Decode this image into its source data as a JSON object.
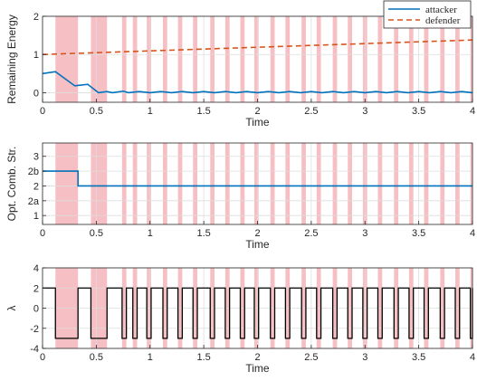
{
  "chart_data": [
    {
      "type": "line",
      "ylabel": "Remaining Energy",
      "xlabel": "Time",
      "xlim": [
        0,
        4
      ],
      "ylim": [
        -0.25,
        2
      ],
      "xticks": [
        0,
        0.5,
        1,
        1.5,
        2,
        2.5,
        3,
        3.5,
        4
      ],
      "xticklabels": [
        "0",
        "0.5",
        "1",
        "1.5",
        "2",
        "2.5",
        "3",
        "3.5",
        "4"
      ],
      "yticks": [
        0,
        1,
        2
      ],
      "yticklabels": [
        "0",
        "1",
        "2"
      ],
      "grid": true,
      "legend_position": "top-right",
      "series": [
        {
          "name": "attacker",
          "color": "#0072bd",
          "dash": "solid",
          "points": [
            [
              0,
              0.5
            ],
            [
              0.12,
              0.55
            ],
            [
              0.3,
              0.18
            ],
            [
              0.42,
              0.22
            ],
            [
              0.52,
              0.0
            ],
            [
              0.6,
              0.03
            ],
            [
              0.65,
              0.0
            ],
            [
              0.75,
              0.04
            ],
            [
              0.8,
              0.0
            ],
            [
              0.9,
              0.03
            ],
            [
              1.0,
              0.0
            ],
            [
              1.1,
              0.03
            ],
            [
              1.2,
              0.0
            ],
            [
              1.3,
              0.03
            ],
            [
              1.4,
              0.0
            ],
            [
              1.5,
              0.03
            ],
            [
              1.6,
              0.0
            ],
            [
              1.7,
              0.03
            ],
            [
              1.8,
              0.0
            ],
            [
              1.9,
              0.03
            ],
            [
              2.0,
              0.0
            ],
            [
              2.1,
              0.03
            ],
            [
              2.2,
              0.0
            ],
            [
              2.3,
              0.03
            ],
            [
              2.4,
              0.0
            ],
            [
              2.5,
              0.03
            ],
            [
              2.6,
              0.0
            ],
            [
              2.7,
              0.03
            ],
            [
              2.8,
              0.0
            ],
            [
              2.9,
              0.03
            ],
            [
              3.0,
              0.0
            ],
            [
              3.1,
              0.03
            ],
            [
              3.2,
              0.0
            ],
            [
              3.3,
              0.03
            ],
            [
              3.4,
              0.0
            ],
            [
              3.5,
              0.03
            ],
            [
              3.6,
              0.0
            ],
            [
              3.7,
              0.03
            ],
            [
              3.8,
              0.0
            ],
            [
              3.9,
              0.03
            ],
            [
              4.0,
              0.0
            ]
          ]
        },
        {
          "name": "defender",
          "color": "#d95319",
          "dash": "dashed",
          "points": [
            [
              0,
              1.0
            ],
            [
              4,
              1.38
            ]
          ]
        }
      ]
    },
    {
      "type": "line",
      "ylabel": "Opt. Comb. Str.",
      "xlabel": "Time",
      "xlim": [
        0,
        4
      ],
      "ylim": [
        0.7,
        3.45
      ],
      "xticks": [
        0,
        0.5,
        1,
        1.5,
        2,
        2.5,
        3,
        3.5,
        4
      ],
      "xticklabels": [
        "0",
        "0.5",
        "1",
        "1.5",
        "2",
        "2.5",
        "3",
        "3.5",
        "4"
      ],
      "yticks": [
        1,
        1.5,
        2,
        2.5,
        3
      ],
      "yticklabels": [
        "1",
        "2a",
        "2",
        "2b",
        "3"
      ],
      "grid": true,
      "series": [
        {
          "color": "#0072bd",
          "dash": "solid",
          "points": [
            [
              0,
              2.5
            ],
            [
              0.33,
              2.5
            ],
            [
              0.33,
              2.0
            ],
            [
              4,
              2.0
            ]
          ]
        }
      ]
    },
    {
      "type": "line",
      "ylabel": "λ",
      "xlabel": "Time",
      "xlim": [
        0,
        4
      ],
      "ylim": [
        -4,
        4
      ],
      "xticks": [
        0,
        0.5,
        1,
        1.5,
        2,
        2.5,
        3,
        3.5,
        4
      ],
      "xticklabels": [
        "0",
        "0.5",
        "1",
        "1.5",
        "2",
        "2.5",
        "3",
        "3.5",
        "4"
      ],
      "yticks": [
        -4,
        -2,
        0,
        2,
        4
      ],
      "yticklabels": [
        "-4",
        "-2",
        "0",
        "2",
        "4"
      ],
      "grid": true,
      "series": [
        {
          "color": "#000000",
          "dash": "solid",
          "high": 2,
          "low": -3,
          "low_intervals": [
            [
              0.12,
              0.33
            ],
            [
              0.45,
              0.6
            ],
            [
              0.74,
              0.78
            ],
            [
              0.84,
              0.88
            ],
            [
              0.97,
              1.01
            ],
            [
              1.12,
              1.16
            ],
            [
              1.26,
              1.3
            ],
            [
              1.4,
              1.44
            ],
            [
              1.56,
              1.6
            ],
            [
              1.7,
              1.74
            ],
            [
              1.84,
              1.88
            ],
            [
              1.97,
              2.01
            ],
            [
              2.12,
              2.16
            ],
            [
              2.26,
              2.3
            ],
            [
              2.41,
              2.45
            ],
            [
              2.55,
              2.59
            ],
            [
              2.7,
              2.74
            ],
            [
              2.84,
              2.88
            ],
            [
              2.98,
              3.02
            ],
            [
              3.12,
              3.16
            ],
            [
              3.27,
              3.31
            ],
            [
              3.41,
              3.45
            ],
            [
              3.55,
              3.59
            ],
            [
              3.7,
              3.74
            ],
            [
              3.84,
              3.88
            ],
            [
              3.98,
              4.0
            ]
          ]
        }
      ]
    }
  ],
  "shaded_intervals": {
    "color": "#f4b4b8",
    "intervals": [
      [
        0.12,
        0.33
      ],
      [
        0.45,
        0.6
      ],
      [
        0.74,
        0.78
      ],
      [
        0.84,
        0.88
      ],
      [
        0.97,
        1.01
      ],
      [
        1.12,
        1.16
      ],
      [
        1.26,
        1.3
      ],
      [
        1.4,
        1.44
      ],
      [
        1.56,
        1.6
      ],
      [
        1.7,
        1.74
      ],
      [
        1.84,
        1.88
      ],
      [
        1.97,
        2.01
      ],
      [
        2.12,
        2.16
      ],
      [
        2.26,
        2.3
      ],
      [
        2.41,
        2.45
      ],
      [
        2.55,
        2.59
      ],
      [
        2.7,
        2.74
      ],
      [
        2.84,
        2.88
      ],
      [
        2.98,
        3.02
      ],
      [
        3.12,
        3.16
      ],
      [
        3.27,
        3.31
      ],
      [
        3.41,
        3.45
      ],
      [
        3.55,
        3.59
      ],
      [
        3.7,
        3.74
      ],
      [
        3.84,
        3.88
      ],
      [
        3.98,
        4.0
      ]
    ]
  }
}
